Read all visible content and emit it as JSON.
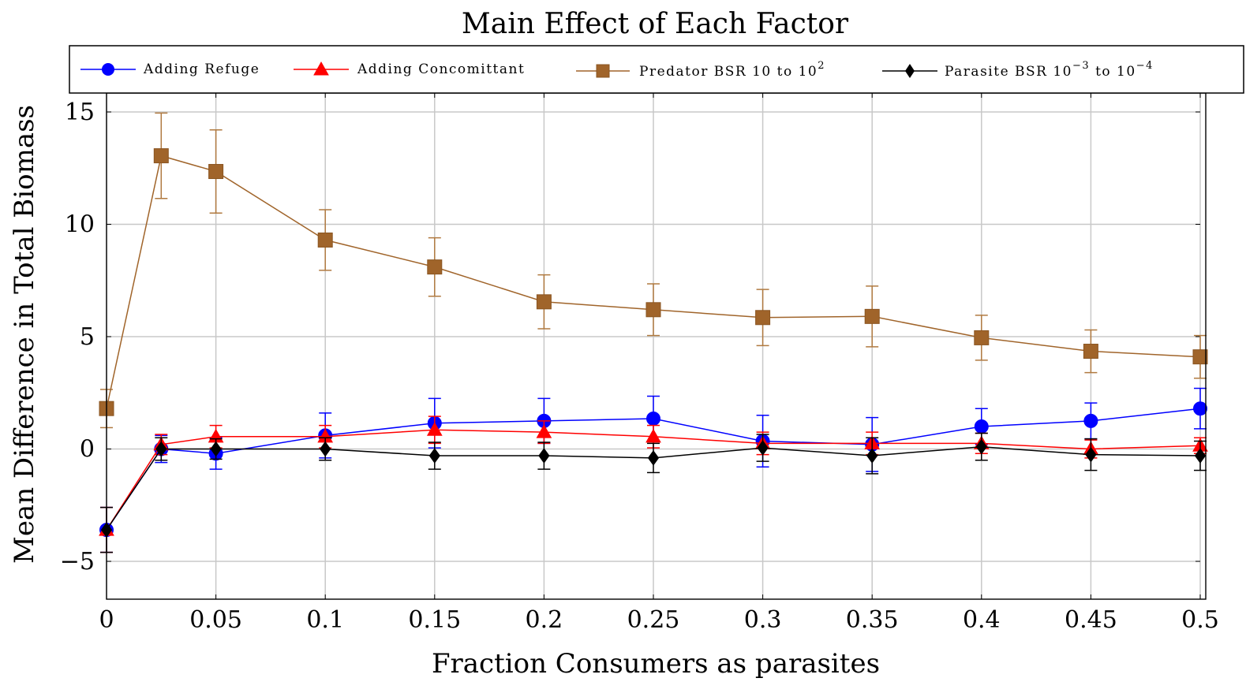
{
  "chart_data": {
    "type": "line",
    "title": "Main Effect of Each Factor",
    "xlabel": "Fraction Consumers as parasites",
    "ylabel": "Mean Difference in Total Biomass",
    "xlim": [
      0,
      0.5
    ],
    "ylim": [
      -6.5,
      15.5
    ],
    "x_ticks": [
      0,
      0.05,
      0.1,
      0.15,
      0.2,
      0.25,
      0.3,
      0.35,
      0.4,
      0.45,
      0.5
    ],
    "x_tick_labels": [
      "0",
      "0.05",
      "0.1",
      "0.15",
      "0.2",
      "0.25",
      "0.3",
      "0.35",
      "0.4",
      "0.45",
      "0.5"
    ],
    "y_ticks": [
      -5,
      0,
      5,
      10,
      15
    ],
    "y_tick_labels": [
      "−5",
      "0",
      "5",
      "10",
      "15"
    ],
    "grid": true,
    "legend_position": "top",
    "x": [
      0,
      0.025,
      0.05,
      0.1,
      0.15,
      0.2,
      0.25,
      0.3,
      0.35,
      0.4,
      0.45,
      0.5
    ],
    "series": [
      {
        "name": "Adding Refuge",
        "color": "#0000ff",
        "marker": "circle",
        "values": [
          -3.6,
          0.0,
          -0.2,
          0.6,
          1.15,
          1.25,
          1.35,
          0.35,
          0.2,
          1.0,
          1.25,
          1.8
        ],
        "errors": [
          1.0,
          0.6,
          0.7,
          1.0,
          1.1,
          1.0,
          1.0,
          1.15,
          1.2,
          0.8,
          0.8,
          0.9
        ]
      },
      {
        "name": "Adding Concomittant",
        "color": "#ff0000",
        "marker": "triangle",
        "values": [
          -3.6,
          0.2,
          0.55,
          0.55,
          0.85,
          0.75,
          0.55,
          0.25,
          0.25,
          0.25,
          0.0,
          0.15
        ],
        "errors": [
          1.0,
          0.45,
          0.5,
          0.5,
          0.6,
          0.5,
          0.5,
          0.5,
          0.5,
          0.45,
          0.4,
          0.35
        ]
      },
      {
        "name": "Predator BSR 10 to 10",
        "name_sup": "2",
        "color": "#a0642a",
        "marker": "square",
        "values": [
          1.8,
          13.05,
          12.35,
          9.3,
          8.1,
          6.55,
          6.2,
          5.85,
          5.9,
          4.95,
          4.35,
          4.1
        ],
        "errors": [
          0.85,
          1.9,
          1.85,
          1.35,
          1.3,
          1.2,
          1.15,
          1.25,
          1.35,
          1.0,
          0.95,
          0.95
        ]
      },
      {
        "name": "Parasite BSR 10",
        "name_sup1": "−3",
        "name_mid": " to 10",
        "name_sup2": "−4",
        "color": "#000000",
        "marker": "diamond",
        "values": [
          -3.6,
          0.0,
          0.0,
          0.0,
          -0.3,
          -0.3,
          -0.4,
          0.05,
          -0.3,
          0.1,
          -0.25,
          -0.3
        ],
        "errors": [
          1.0,
          0.5,
          0.45,
          0.5,
          0.6,
          0.6,
          0.65,
          0.6,
          0.8,
          0.6,
          0.7,
          0.65
        ]
      }
    ]
  }
}
